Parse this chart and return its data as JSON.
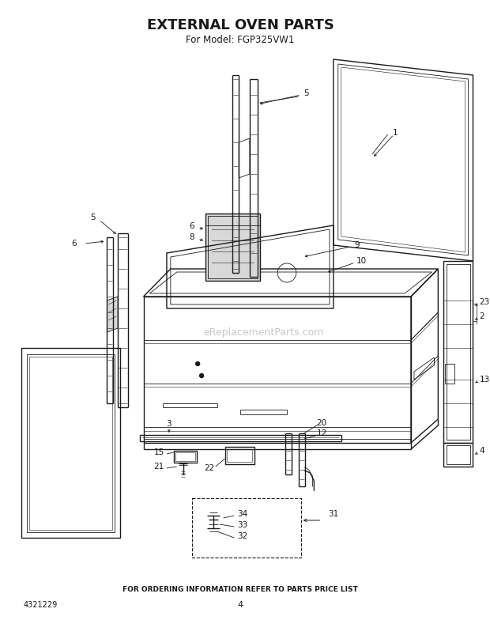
{
  "title": "EXTERNAL OVEN PARTS",
  "subtitle": "For Model: FGP325VW1",
  "footer": "FOR ORDERING INFORMATION REFER TO PARTS PRICE LIST",
  "part_number": "4321229",
  "page_number": "4",
  "bg_color": "#ffffff",
  "line_color": "#1a1a1a",
  "watermark": "eReplacementParts.com",
  "watermark_color": "#c8c8c8",
  "title_fontsize": 13,
  "subtitle_fontsize": 8.5,
  "footer_fontsize": 6.5,
  "label_fontsize": 7.5
}
